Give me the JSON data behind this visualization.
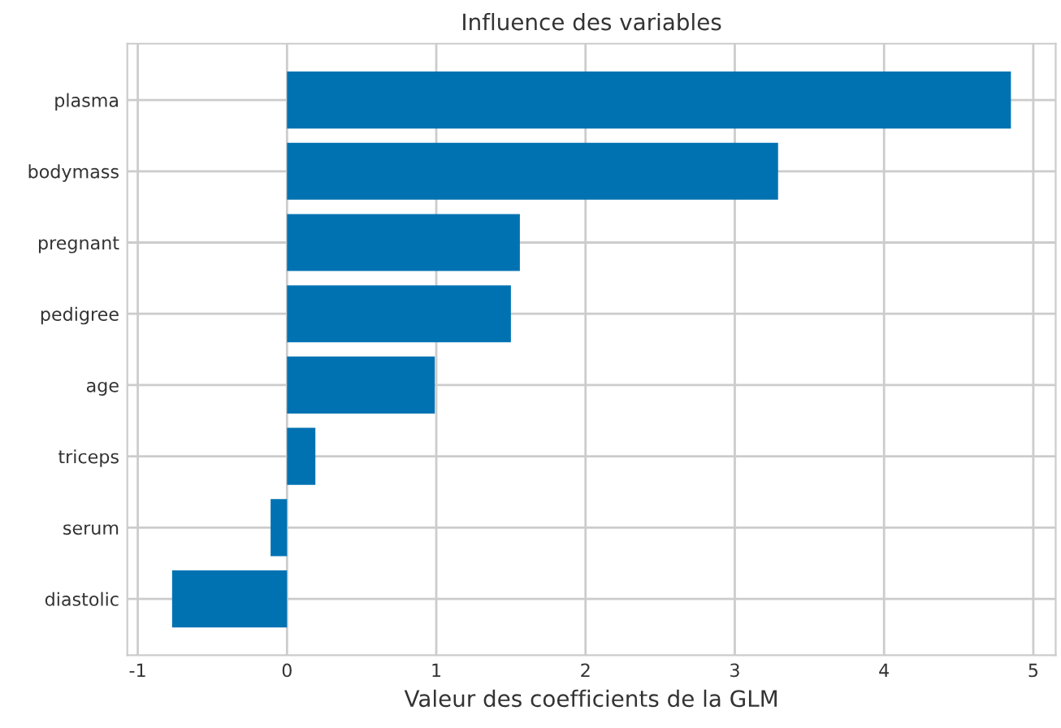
{
  "chart_data": {
    "type": "bar",
    "orientation": "horizontal",
    "title": "Influence des variables",
    "xlabel": "Valeur des coefficients de la GLM",
    "categories": [
      "plasma",
      "bodymass",
      "pregnant",
      "pedigree",
      "age",
      "triceps",
      "serum",
      "diastolic"
    ],
    "values": [
      4.85,
      3.29,
      1.56,
      1.5,
      0.99,
      0.19,
      -0.11,
      -0.77
    ],
    "color": "#0072b2",
    "xlim": [
      -1.07,
      5.15
    ],
    "xticks": [
      -1,
      0,
      1,
      2,
      3,
      4,
      5
    ],
    "grid": true
  }
}
